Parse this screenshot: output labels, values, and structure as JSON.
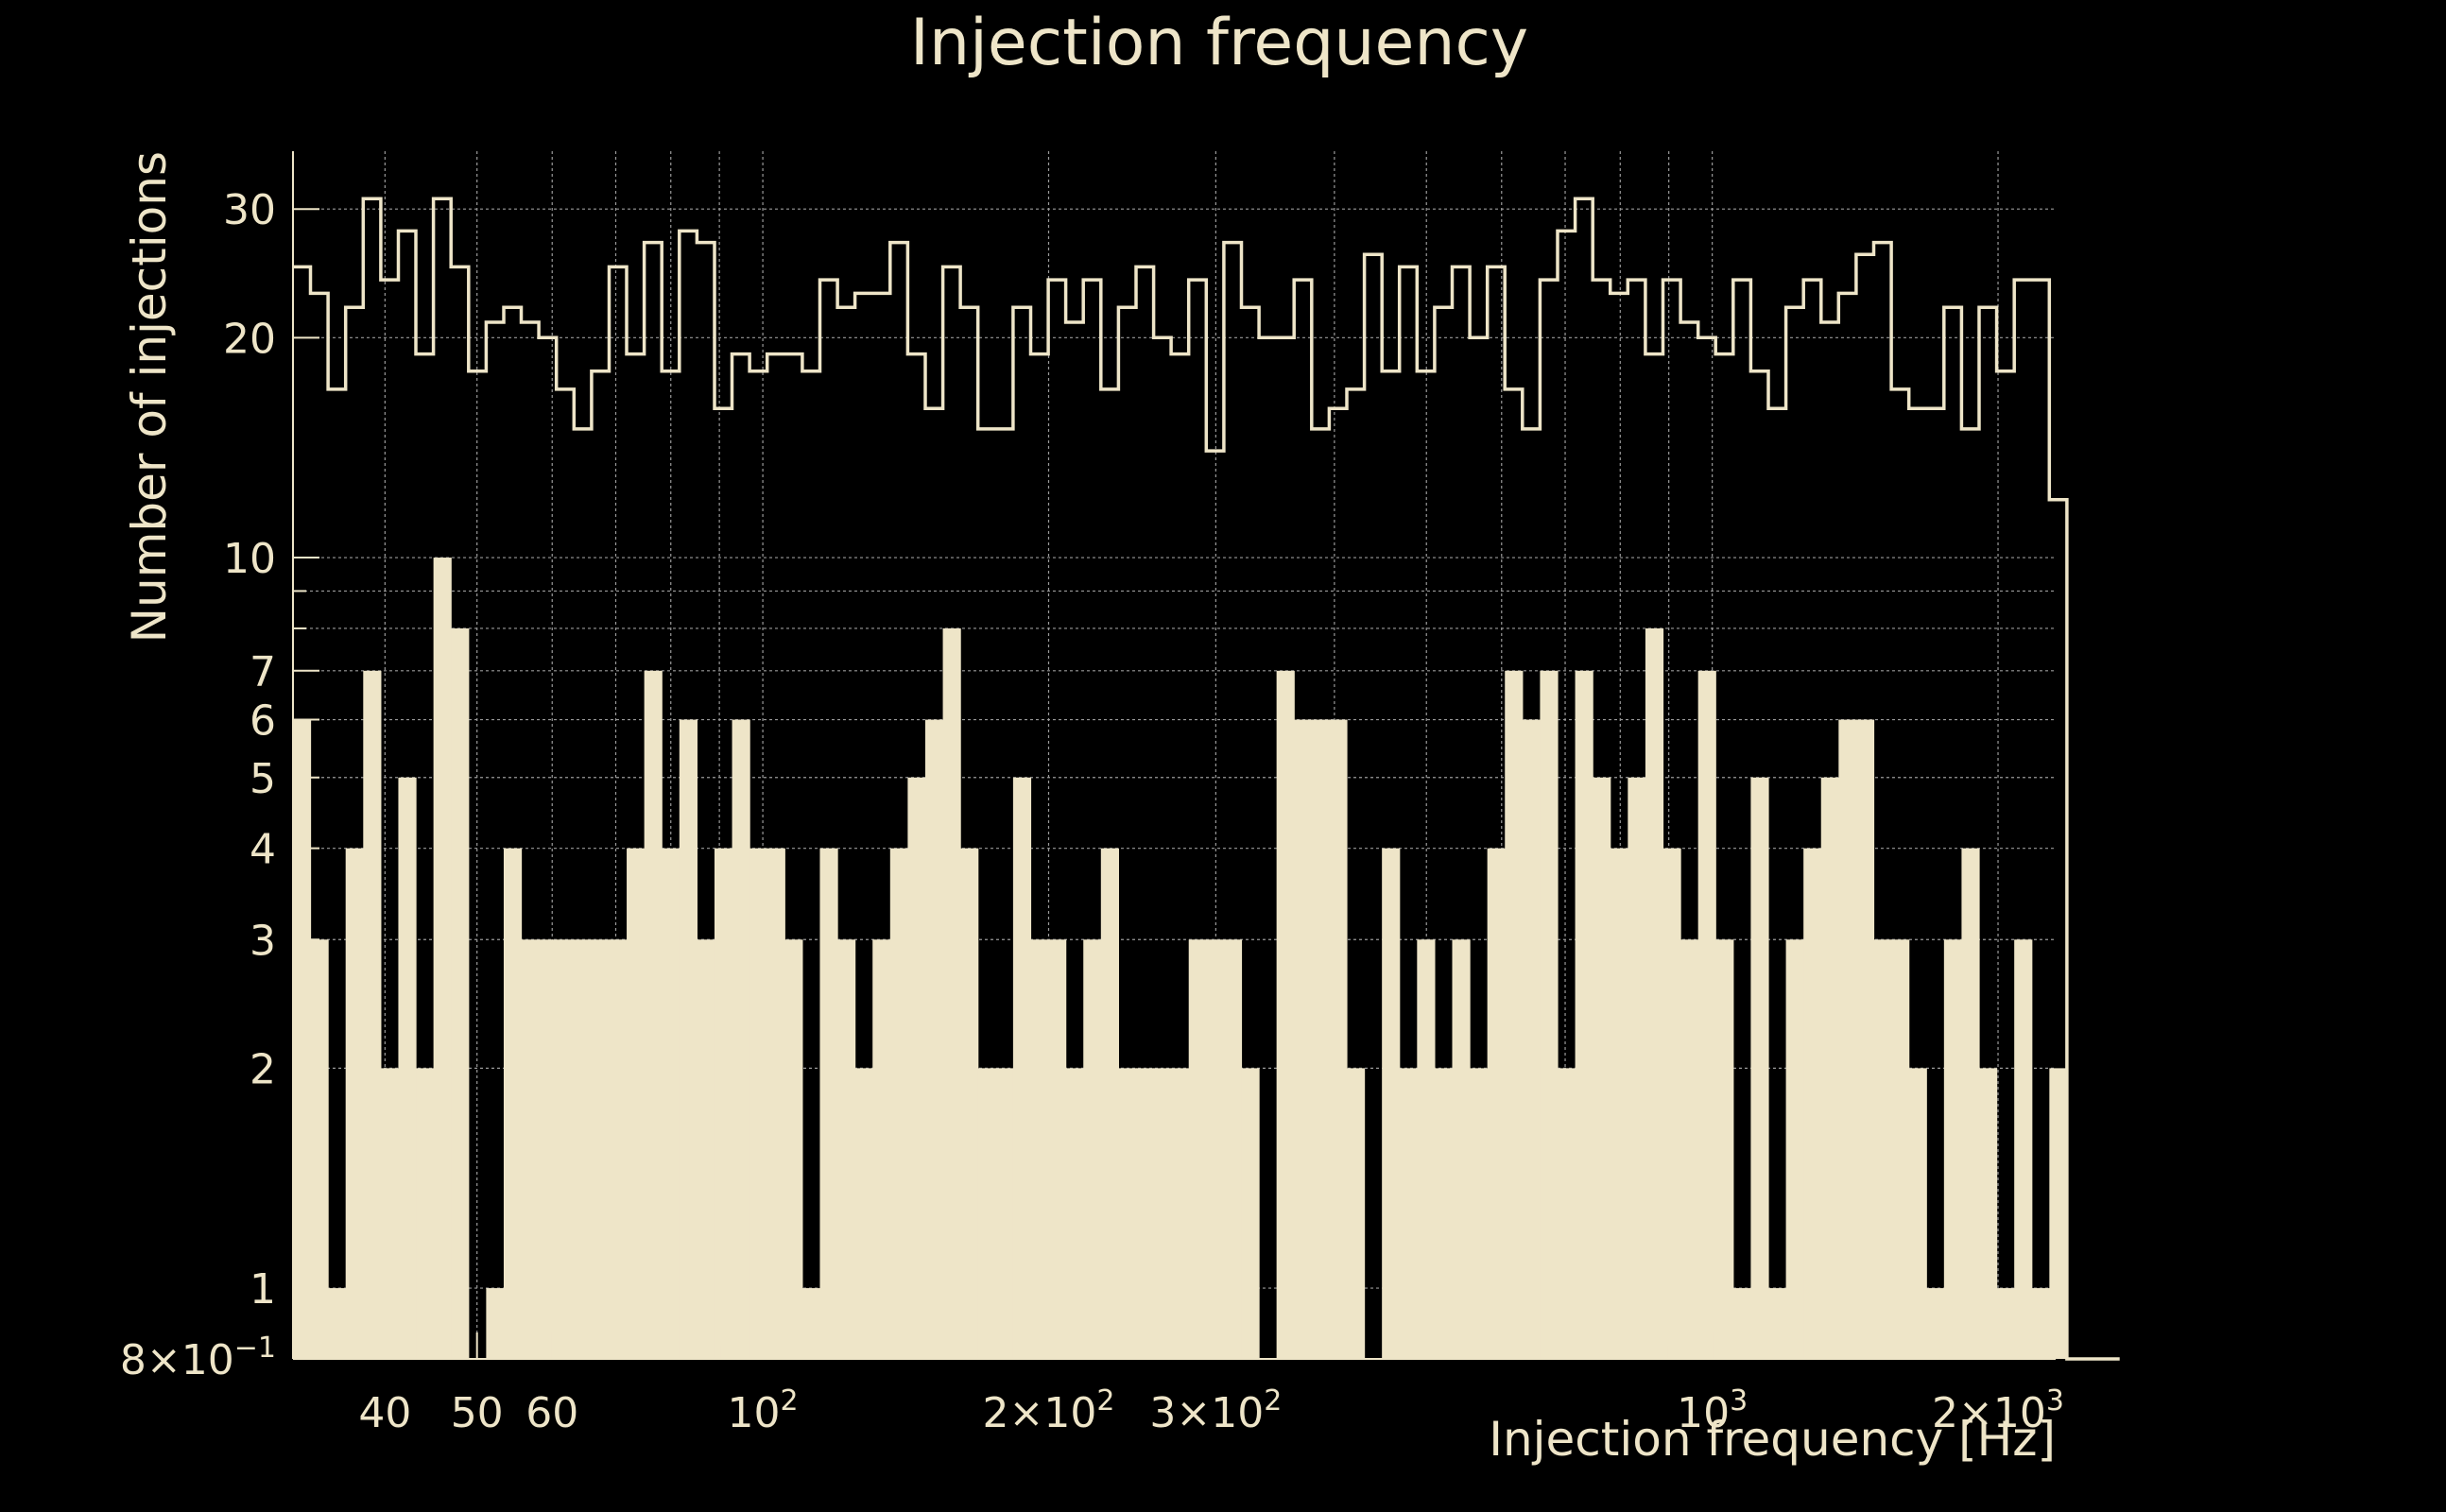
{
  "chart_data": {
    "type": "histogram",
    "title": "Injection frequency",
    "xlabel": "Injection frequency [Hz]",
    "ylabel": "Number of injections",
    "x_scale": "log",
    "y_scale": "log",
    "xlim": [
      32,
      2300
    ],
    "ylim": [
      0.8,
      36
    ],
    "grid": true,
    "colors": {
      "background": "#000000",
      "foreground": "#eee5c8"
    },
    "x_ticks": [
      {
        "value": 40,
        "base": "40",
        "exp": ""
      },
      {
        "value": 50,
        "base": "50",
        "exp": ""
      },
      {
        "value": 60,
        "base": "60",
        "exp": ""
      },
      {
        "value": 100,
        "base": "10",
        "exp": "2"
      },
      {
        "value": 200,
        "base": "2×10",
        "exp": "2"
      },
      {
        "value": 300,
        "base": "3×10",
        "exp": "2"
      },
      {
        "value": 1000,
        "base": "10",
        "exp": "3"
      },
      {
        "value": 2000,
        "base": "2×10",
        "exp": "3"
      }
    ],
    "x_minor_grid": [
      70,
      80,
      90,
      400,
      500,
      600,
      700,
      800,
      900
    ],
    "y_ticks": [
      {
        "value": 0.8,
        "base": "8×10",
        "exp": "−1"
      },
      {
        "value": 1,
        "base": "1",
        "exp": ""
      },
      {
        "value": 2,
        "base": "2",
        "exp": ""
      },
      {
        "value": 3,
        "base": "3",
        "exp": ""
      },
      {
        "value": 4,
        "base": "4",
        "exp": ""
      },
      {
        "value": 5,
        "base": "5",
        "exp": ""
      },
      {
        "value": 6,
        "base": "6",
        "exp": ""
      },
      {
        "value": 7,
        "base": "7",
        "exp": ""
      },
      {
        "value": 10,
        "base": "10",
        "exp": ""
      },
      {
        "value": 20,
        "base": "20",
        "exp": ""
      },
      {
        "value": 30,
        "base": "30",
        "exp": ""
      }
    ],
    "y_minor_grid": [
      8,
      9
    ],
    "bin_edges_log10": {
      "start": 1.5051,
      "step": 0.0185,
      "count": 104
    },
    "series": [
      {
        "style": "filled",
        "values": [
          6,
          3,
          1,
          4,
          7,
          2,
          5,
          2,
          10,
          8,
          0.8,
          1,
          4,
          3,
          3,
          3,
          3,
          3,
          3,
          4,
          7,
          4,
          6,
          3,
          4,
          6,
          4,
          4,
          3,
          1,
          4,
          3,
          2,
          3,
          4,
          5,
          6,
          8,
          4,
          2,
          2,
          5,
          3,
          3,
          2,
          3,
          4,
          2,
          2,
          2,
          2,
          3,
          3,
          3,
          2,
          0.8,
          7,
          6,
          6,
          6,
          2,
          0.8,
          4,
          2,
          3,
          2,
          3,
          2,
          4,
          7,
          6,
          7,
          2,
          7,
          5,
          4,
          5,
          8,
          4,
          3,
          7,
          3,
          1,
          5,
          1,
          3,
          4,
          5,
          6,
          6,
          3,
          3,
          2,
          1,
          3,
          4,
          2,
          1,
          3,
          1,
          2,
          0.8,
          0.8,
          0.8
        ]
      },
      {
        "style": "step",
        "values": [
          25,
          23,
          17,
          22,
          31,
          24,
          28,
          19,
          31,
          25,
          18,
          21,
          22,
          21,
          20,
          17,
          15,
          18,
          25,
          19,
          27,
          18,
          28,
          27,
          16,
          19,
          18,
          19,
          19,
          18,
          24,
          22,
          23,
          23,
          27,
          19,
          16,
          25,
          22,
          15,
          15,
          22,
          19,
          24,
          21,
          24,
          17,
          22,
          25,
          20,
          19,
          24,
          14,
          27,
          22,
          20,
          20,
          24,
          15,
          16,
          17,
          26,
          18,
          25,
          18,
          22,
          25,
          20,
          25,
          17,
          15,
          24,
          28,
          31,
          24,
          23,
          24,
          19,
          24,
          21,
          20,
          19,
          24,
          18,
          16,
          22,
          24,
          21,
          23,
          26,
          27,
          17,
          16,
          16,
          22,
          15,
          22,
          18,
          24,
          24,
          12,
          0.8,
          0.8,
          0.8
        ]
      }
    ]
  }
}
